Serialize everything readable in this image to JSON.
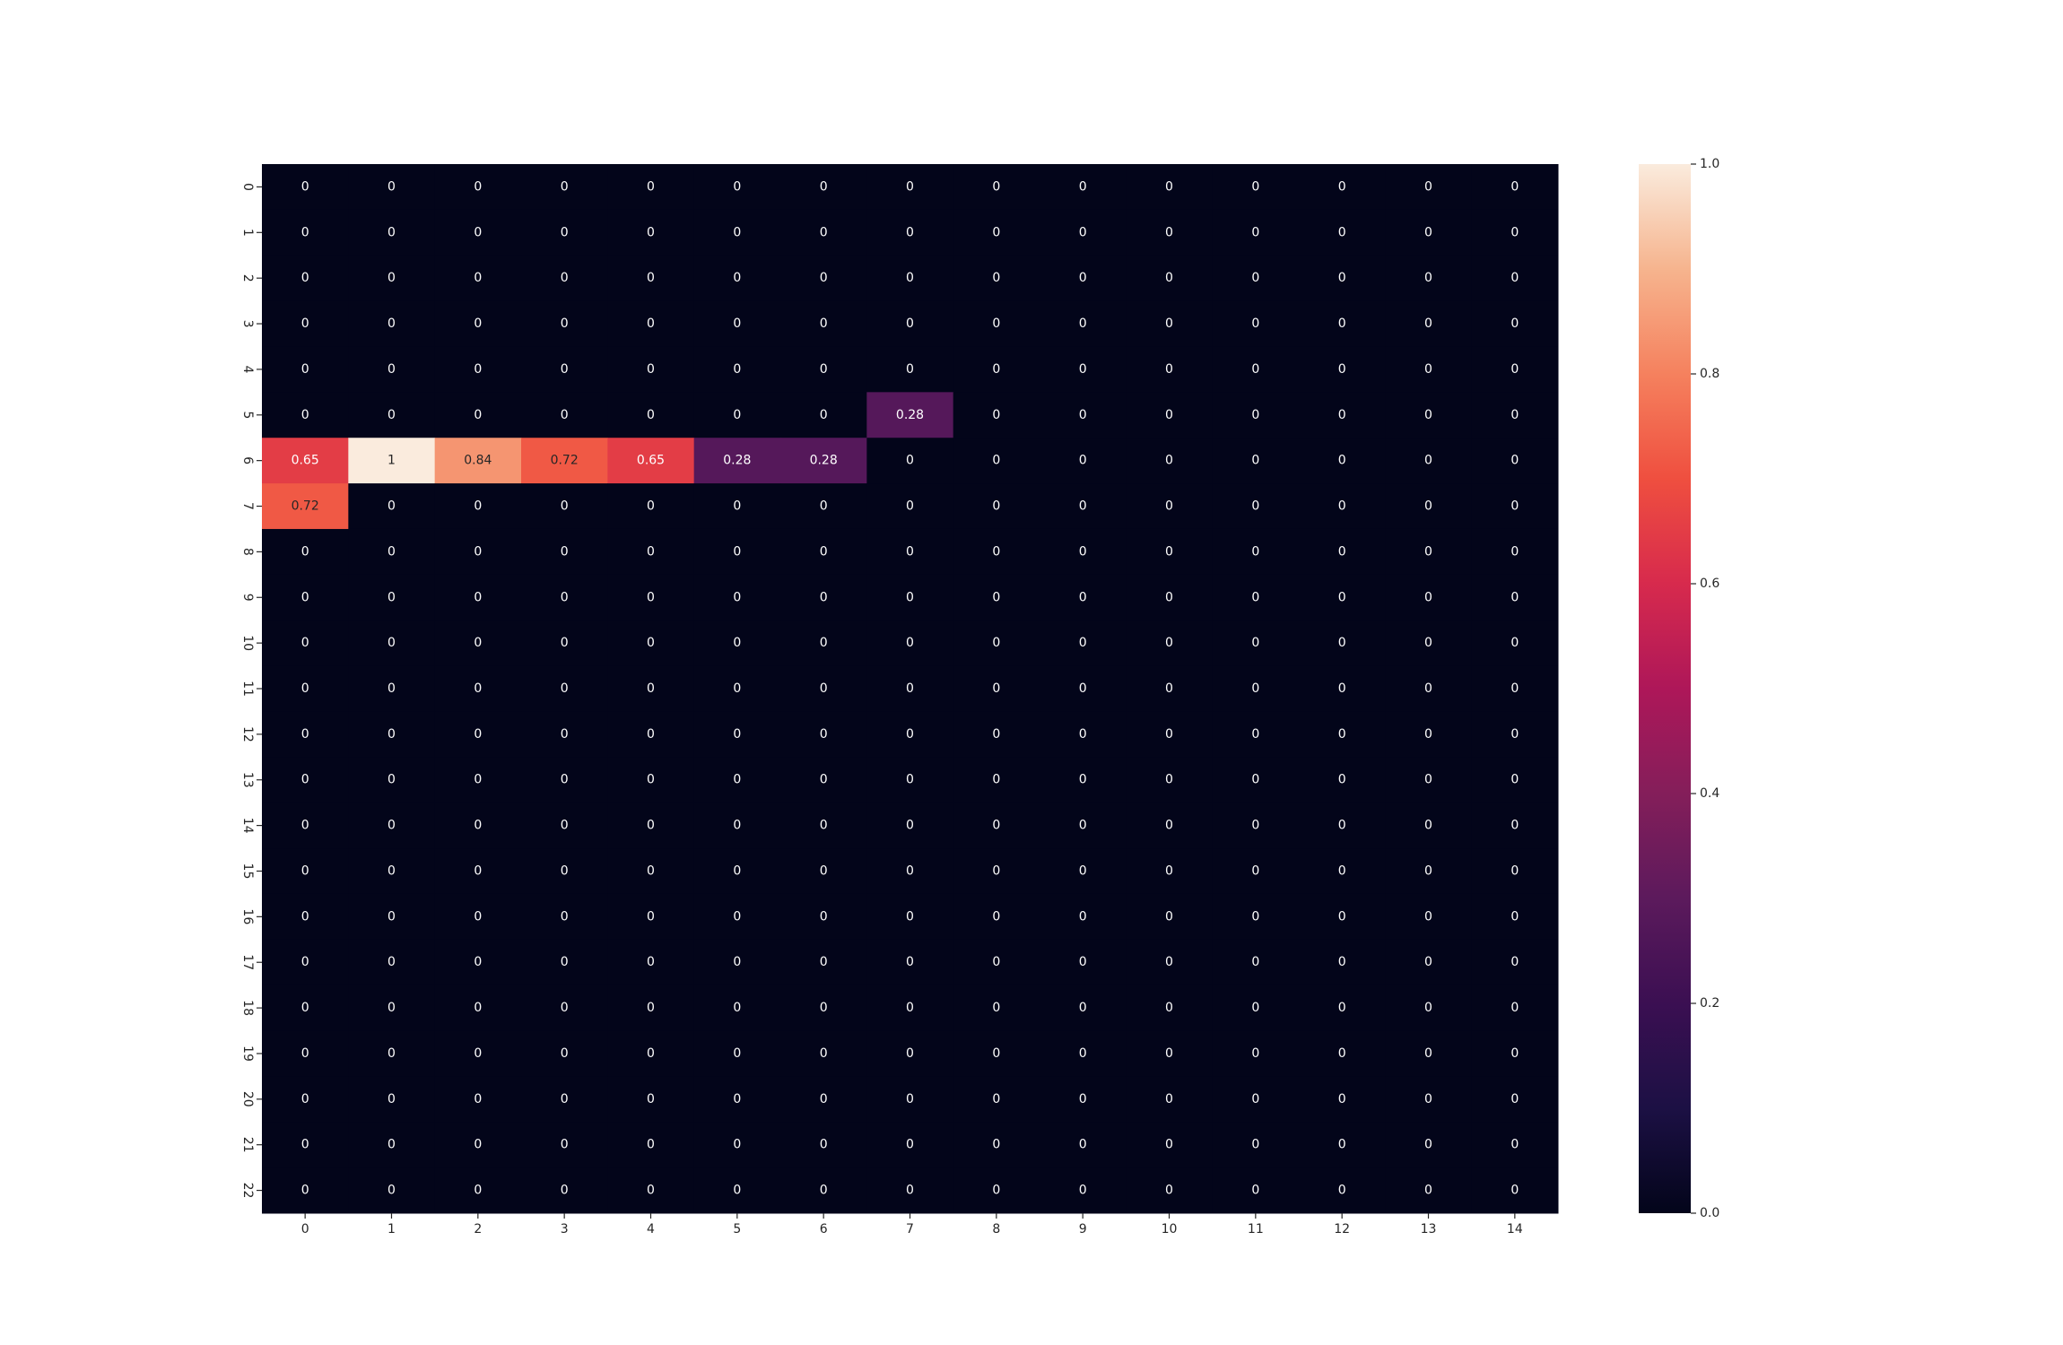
{
  "chart_data": {
    "type": "heatmap",
    "title": "",
    "xlabel": "",
    "ylabel": "",
    "x_tick_labels": [
      "0",
      "1",
      "2",
      "3",
      "4",
      "5",
      "6",
      "7",
      "8",
      "9",
      "10",
      "11",
      "12",
      "13",
      "14"
    ],
    "y_tick_labels": [
      "0",
      "1",
      "2",
      "3",
      "4",
      "5",
      "6",
      "7",
      "8",
      "9",
      "10",
      "11",
      "12",
      "13",
      "14",
      "15",
      "16",
      "17",
      "18",
      "19",
      "20",
      "21",
      "22"
    ],
    "values": [
      [
        0,
        0,
        0,
        0,
        0,
        0,
        0,
        0,
        0,
        0,
        0,
        0,
        0,
        0,
        0
      ],
      [
        0,
        0,
        0,
        0,
        0,
        0,
        0,
        0,
        0,
        0,
        0,
        0,
        0,
        0,
        0
      ],
      [
        0,
        0,
        0,
        0,
        0,
        0,
        0,
        0,
        0,
        0,
        0,
        0,
        0,
        0,
        0
      ],
      [
        0,
        0,
        0,
        0,
        0,
        0,
        0,
        0,
        0,
        0,
        0,
        0,
        0,
        0,
        0
      ],
      [
        0,
        0,
        0,
        0,
        0,
        0,
        0,
        0,
        0,
        0,
        0,
        0,
        0,
        0,
        0
      ],
      [
        0,
        0,
        0,
        0,
        0,
        0,
        0,
        0.28,
        0,
        0,
        0,
        0,
        0,
        0,
        0
      ],
      [
        0.65,
        1,
        0.84,
        0.72,
        0.65,
        0.28,
        0.28,
        0,
        0,
        0,
        0,
        0,
        0,
        0,
        0
      ],
      [
        0.72,
        0,
        0,
        0,
        0,
        0,
        0,
        0,
        0,
        0,
        0,
        0,
        0,
        0,
        0
      ],
      [
        0,
        0,
        0,
        0,
        0,
        0,
        0,
        0,
        0,
        0,
        0,
        0,
        0,
        0,
        0
      ],
      [
        0,
        0,
        0,
        0,
        0,
        0,
        0,
        0,
        0,
        0,
        0,
        0,
        0,
        0,
        0
      ],
      [
        0,
        0,
        0,
        0,
        0,
        0,
        0,
        0,
        0,
        0,
        0,
        0,
        0,
        0,
        0
      ],
      [
        0,
        0,
        0,
        0,
        0,
        0,
        0,
        0,
        0,
        0,
        0,
        0,
        0,
        0,
        0
      ],
      [
        0,
        0,
        0,
        0,
        0,
        0,
        0,
        0,
        0,
        0,
        0,
        0,
        0,
        0,
        0
      ],
      [
        0,
        0,
        0,
        0,
        0,
        0,
        0,
        0,
        0,
        0,
        0,
        0,
        0,
        0,
        0
      ],
      [
        0,
        0,
        0,
        0,
        0,
        0,
        0,
        0,
        0,
        0,
        0,
        0,
        0,
        0,
        0
      ],
      [
        0,
        0,
        0,
        0,
        0,
        0,
        0,
        0,
        0,
        0,
        0,
        0,
        0,
        0,
        0
      ],
      [
        0,
        0,
        0,
        0,
        0,
        0,
        0,
        0,
        0,
        0,
        0,
        0,
        0,
        0,
        0
      ],
      [
        0,
        0,
        0,
        0,
        0,
        0,
        0,
        0,
        0,
        0,
        0,
        0,
        0,
        0,
        0
      ],
      [
        0,
        0,
        0,
        0,
        0,
        0,
        0,
        0,
        0,
        0,
        0,
        0,
        0,
        0,
        0
      ],
      [
        0,
        0,
        0,
        0,
        0,
        0,
        0,
        0,
        0,
        0,
        0,
        0,
        0,
        0,
        0
      ],
      [
        0,
        0,
        0,
        0,
        0,
        0,
        0,
        0,
        0,
        0,
        0,
        0,
        0,
        0,
        0
      ],
      [
        0,
        0,
        0,
        0,
        0,
        0,
        0,
        0,
        0,
        0,
        0,
        0,
        0,
        0,
        0
      ],
      [
        0,
        0,
        0,
        0,
        0,
        0,
        0,
        0,
        0,
        0,
        0,
        0,
        0,
        0,
        0
      ]
    ],
    "annotated": true,
    "colormap": "rocket",
    "colorbar": {
      "vmin": 0.0,
      "vmax": 1.0,
      "ticks": [
        0.0,
        0.2,
        0.4,
        0.6,
        0.8,
        1.0
      ],
      "tick_labels": [
        "0.0",
        "0.2",
        "0.4",
        "0.6",
        "0.8",
        "1.0"
      ]
    },
    "grid": false,
    "legend": "colorbar-right"
  }
}
